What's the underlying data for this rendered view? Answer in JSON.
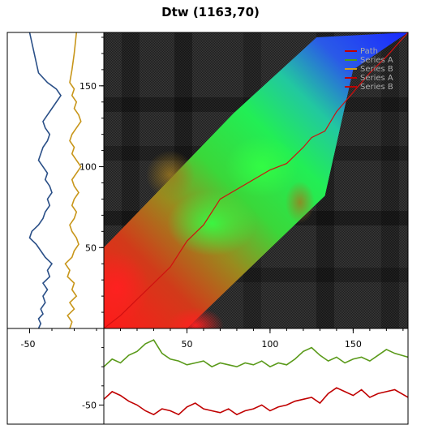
{
  "title": "Dtw (1163,70)",
  "chart_data": {
    "type": "heatmap",
    "title": "Dtw (1163,70)",
    "x_range": [
      0,
      183
    ],
    "y_range": [
      0,
      183
    ],
    "main_x_ticks": [
      50,
      100,
      150
    ],
    "main_y_ticks": [
      50,
      100,
      150
    ],
    "left_panel_ticks": [
      -50
    ],
    "bottom_panel_ticks": [
      -50
    ],
    "legend_position": "top-right",
    "legend": [
      {
        "name": "Path",
        "color": "#c00000"
      },
      {
        "name": "Series A",
        "color": "#4d9a1a"
      },
      {
        "name": "Series B",
        "color": "#d4a017"
      },
      {
        "name": "Series A",
        "color": "#c00000"
      },
      {
        "name": "Series B",
        "color": "#c00000"
      }
    ],
    "band_polygon": [
      [
        0,
        50
      ],
      [
        78,
        133
      ],
      [
        128,
        180
      ],
      [
        183,
        183
      ],
      [
        150,
        160
      ],
      [
        133,
        82
      ],
      [
        50,
        0
      ],
      [
        0,
        0
      ]
    ],
    "warp_path": [
      [
        0,
        0
      ],
      [
        10,
        8
      ],
      [
        20,
        18
      ],
      [
        30,
        28
      ],
      [
        40,
        38
      ],
      [
        50,
        54
      ],
      [
        60,
        64
      ],
      [
        70,
        80
      ],
      [
        80,
        86
      ],
      [
        90,
        92
      ],
      [
        100,
        98
      ],
      [
        110,
        102
      ],
      [
        120,
        112
      ],
      [
        125,
        118
      ],
      [
        133,
        122
      ],
      [
        140,
        134
      ],
      [
        150,
        146
      ],
      [
        160,
        158
      ],
      [
        170,
        168
      ],
      [
        183,
        183
      ]
    ],
    "left_series": [
      {
        "name": "Series A",
        "color": "#2a4f87",
        "x": [
          -46,
          -45,
          -46,
          -44,
          -45,
          -43,
          -44,
          -42,
          -44,
          -41,
          -42,
          -40,
          -43,
          -45,
          -47,
          -50,
          -49,
          -46,
          -44,
          -43,
          -41,
          -42,
          -40,
          -41,
          -43,
          -42,
          -44,
          -46,
          -45,
          -44,
          -42,
          -41,
          -43,
          -44,
          -42,
          -40,
          -38,
          -36,
          -38,
          -42,
          -46,
          -50
        ],
        "y": [
          0,
          3,
          6,
          9,
          12,
          16,
          20,
          24,
          28,
          32,
          36,
          40,
          44,
          48,
          52,
          56,
          60,
          64,
          68,
          72,
          76,
          80,
          84,
          88,
          92,
          96,
          100,
          104,
          108,
          112,
          116,
          120,
          124,
          128,
          132,
          136,
          140,
          144,
          148,
          152,
          158,
          183
        ]
      },
      {
        "name": "Series B",
        "color": "#c8961a",
        "x": [
          -32,
          -31,
          -33,
          -30,
          -32,
          -29,
          -31,
          -30,
          -33,
          -32,
          -34,
          -31,
          -30,
          -28,
          -29,
          -31,
          -32,
          -30,
          -29,
          -31,
          -30,
          -28,
          -30,
          -31,
          -29,
          -27,
          -29,
          -31,
          -30,
          -32,
          -31,
          -29,
          -27,
          -28,
          -30,
          -29,
          -31,
          -30,
          -32,
          -31,
          -30,
          -29
        ],
        "y": [
          0,
          4,
          8,
          12,
          16,
          20,
          24,
          28,
          32,
          36,
          40,
          44,
          48,
          52,
          56,
          60,
          64,
          68,
          72,
          76,
          80,
          84,
          88,
          92,
          96,
          100,
          104,
          108,
          112,
          116,
          120,
          124,
          128,
          132,
          136,
          140,
          144,
          148,
          152,
          160,
          170,
          183
        ]
      }
    ],
    "bottom_series": [
      {
        "name": "Series A",
        "color": "#5a9a1a",
        "x": [
          0,
          5,
          10,
          15,
          20,
          25,
          30,
          35,
          40,
          45,
          50,
          55,
          60,
          65,
          70,
          75,
          80,
          85,
          90,
          95,
          100,
          105,
          110,
          115,
          120,
          125,
          130,
          135,
          140,
          145,
          150,
          155,
          160,
          165,
          170,
          175,
          183
        ],
        "y": [
          -30,
          -26,
          -28,
          -24,
          -22,
          -18,
          -16,
          -23,
          -26,
          -27,
          -29,
          -28,
          -27,
          -30,
          -28,
          -29,
          -30,
          -28,
          -29,
          -27,
          -30,
          -28,
          -29,
          -26,
          -22,
          -20,
          -24,
          -27,
          -25,
          -28,
          -26,
          -25,
          -27,
          -24,
          -21,
          -23,
          -25
        ]
      },
      {
        "name": "Series B",
        "color": "#c00000",
        "x": [
          0,
          5,
          10,
          15,
          20,
          25,
          30,
          35,
          40,
          45,
          50,
          55,
          60,
          65,
          70,
          75,
          80,
          85,
          90,
          95,
          100,
          105,
          110,
          115,
          120,
          125,
          130,
          135,
          140,
          145,
          150,
          155,
          160,
          165,
          170,
          175,
          183
        ],
        "y": [
          -47,
          -43,
          -45,
          -48,
          -50,
          -53,
          -55,
          -52,
          -53,
          -55,
          -51,
          -49,
          -52,
          -53,
          -54,
          -52,
          -55,
          -53,
          -52,
          -50,
          -53,
          -51,
          -50,
          -48,
          -47,
          -46,
          -49,
          -44,
          -41,
          -43,
          -45,
          -42,
          -46,
          -44,
          -43,
          -42,
          -46
        ]
      }
    ]
  }
}
